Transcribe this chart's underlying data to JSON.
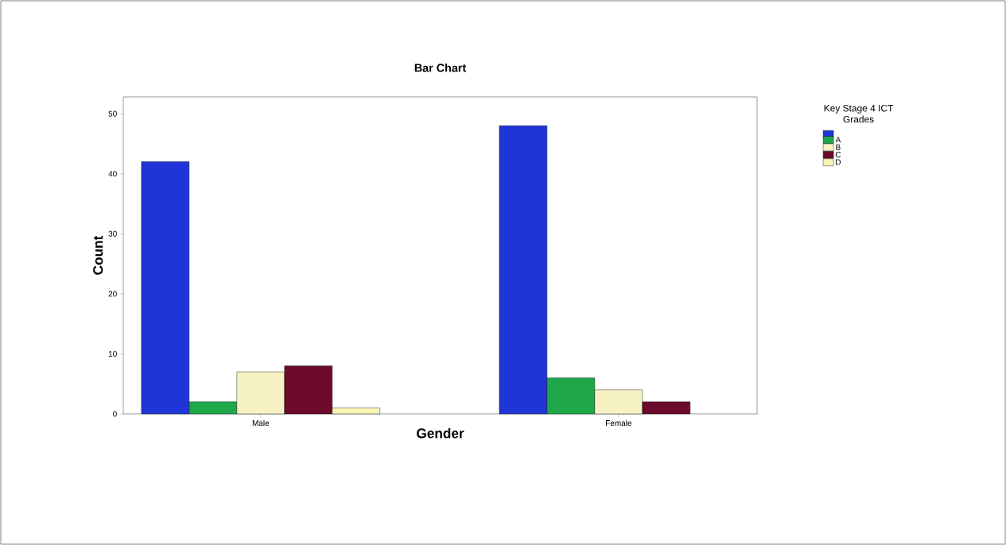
{
  "chart_data": {
    "type": "bar",
    "title": "Bar Chart",
    "xlabel": "Gender",
    "ylabel": "Count",
    "legend_title": "Key Stage 4 ICT Grades",
    "categories": [
      "Male",
      "Female"
    ],
    "series": [
      {
        "color": "#1f35d8",
        "values": [
          42,
          48
        ]
      },
      {
        "name": "A",
        "color": "#1fa84a",
        "values": [
          2,
          6
        ]
      },
      {
        "name": "B",
        "color": "#f7f2c4",
        "values": [
          7,
          4
        ]
      },
      {
        "name": "C",
        "color": "#6b0a2a",
        "values": [
          8,
          2
        ]
      },
      {
        "name": "D",
        "color": "#f6f5b6",
        "values": [
          1,
          null
        ]
      }
    ],
    "ylim": [
      0,
      52.8
    ],
    "yticks": [
      0,
      10,
      20,
      30,
      40,
      50
    ],
    "grid": false,
    "legend": "top right"
  }
}
